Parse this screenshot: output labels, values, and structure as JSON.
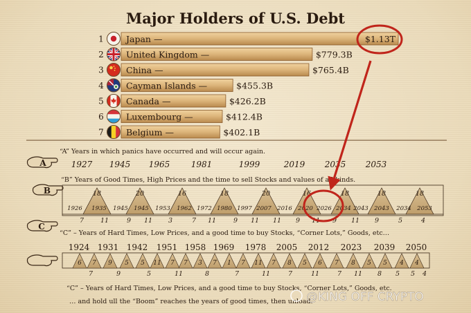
{
  "chart_data": [
    {
      "type": "bar",
      "title": "Major Holders of U.S. Debt",
      "bars": [
        {
          "rank": "1",
          "label": "Japan —",
          "value_label": "$1.13T",
          "value": 1130,
          "flag": "japan-flag"
        },
        {
          "rank": "2",
          "label": "United Kingdom —",
          "value_label": "$779.3B",
          "value": 779.3,
          "flag": "uk-flag"
        },
        {
          "rank": "3",
          "label": "China —",
          "value_label": "$765.4B",
          "value": 765.4,
          "flag": "china-flag"
        },
        {
          "rank": "4",
          "label": "Cayman Islands —",
          "value_label": "$455.3B",
          "value": 455.3,
          "flag": "cayman-flag"
        },
        {
          "rank": "5",
          "label": "Canada —",
          "value_label": "$426.2B",
          "value": 426.2,
          "flag": "canada-flag"
        },
        {
          "rank": "6",
          "label": "Luxembourg —",
          "value_label": "$412.4B",
          "value": 412.4,
          "flag": "luxembourg-flag"
        },
        {
          "rank": "7",
          "label": "Belgium —",
          "value_label": "$402.1B",
          "value": 402.1,
          "flag": "belgium-flag"
        }
      ],
      "highlight": "$1.13T"
    },
    {
      "type": "table",
      "rows": [
        {
          "marker": "A",
          "caption": "“A” Years in which panics have occurred and will occur again.",
          "years": [
            "1927",
            "1945",
            "1965",
            "1981",
            "1999",
            "2019",
            "2035",
            "2053"
          ]
        },
        {
          "marker": "B",
          "caption": "“B” Years of Good Times, High Prices and the time to sell Stocks and values of all kinds.",
          "top_numbers": [
            "18",
            "20",
            "16",
            "18",
            "20",
            "16",
            "18",
            "18",
            "18"
          ],
          "inner_years": [
            "1926",
            "1935",
            "1945",
            "1945",
            "1953",
            "1962",
            "1972",
            "1980",
            "1997",
            "2007",
            "2016",
            "2020",
            "2026",
            "2034",
            "2043",
            "2043",
            "2034",
            "2053"
          ],
          "bottom_numbers": [
            "7",
            "11",
            "9",
            "11",
            "3",
            "7",
            "11",
            "9",
            "11",
            "11",
            "9",
            "11",
            "9",
            "11",
            "9",
            "5",
            "4"
          ],
          "highlight": "2026"
        },
        {
          "marker": "C",
          "caption": "“C” – Years of Hard Times, Low Prices, and a good time to buy Stocks, “Corner Lots,” Goods, etc…",
          "years": [
            "1924",
            "1931",
            "1942",
            "1951",
            "1958",
            "1969",
            "1978",
            "2005",
            "2012",
            "2023",
            "2039",
            "2050"
          ],
          "top_numbers": [
            "6",
            "7",
            "9",
            "5",
            "5",
            "11",
            "7",
            "7",
            "3",
            "7",
            "1",
            "7",
            "11",
            "7",
            "8",
            "5",
            "6",
            "7",
            "8",
            "5",
            "5",
            "4",
            "4"
          ],
          "bottom_numbers": [
            "7",
            "9",
            "5",
            "11",
            "8",
            "7",
            "11",
            "7",
            "11",
            "7",
            "11",
            "8",
            "5",
            "5",
            "4"
          ]
        }
      ],
      "footer_lines": [
        "“C” – Years of Hard Times, Low Prices, and a good time to buy Stocks, “Corner Lots,” Goods, etc.",
        "… and hold ull the “Boom” reaches the years of good times, then unload."
      ],
      "watermark": "@KING OFF CRYPTO"
    }
  ],
  "colors": {
    "paper": "#efe2c6",
    "ink": "#2a1b10",
    "bar_fill": "#dcb47a",
    "bar_edge": "#8a5a2b",
    "highlight_red": "#c0251b"
  }
}
